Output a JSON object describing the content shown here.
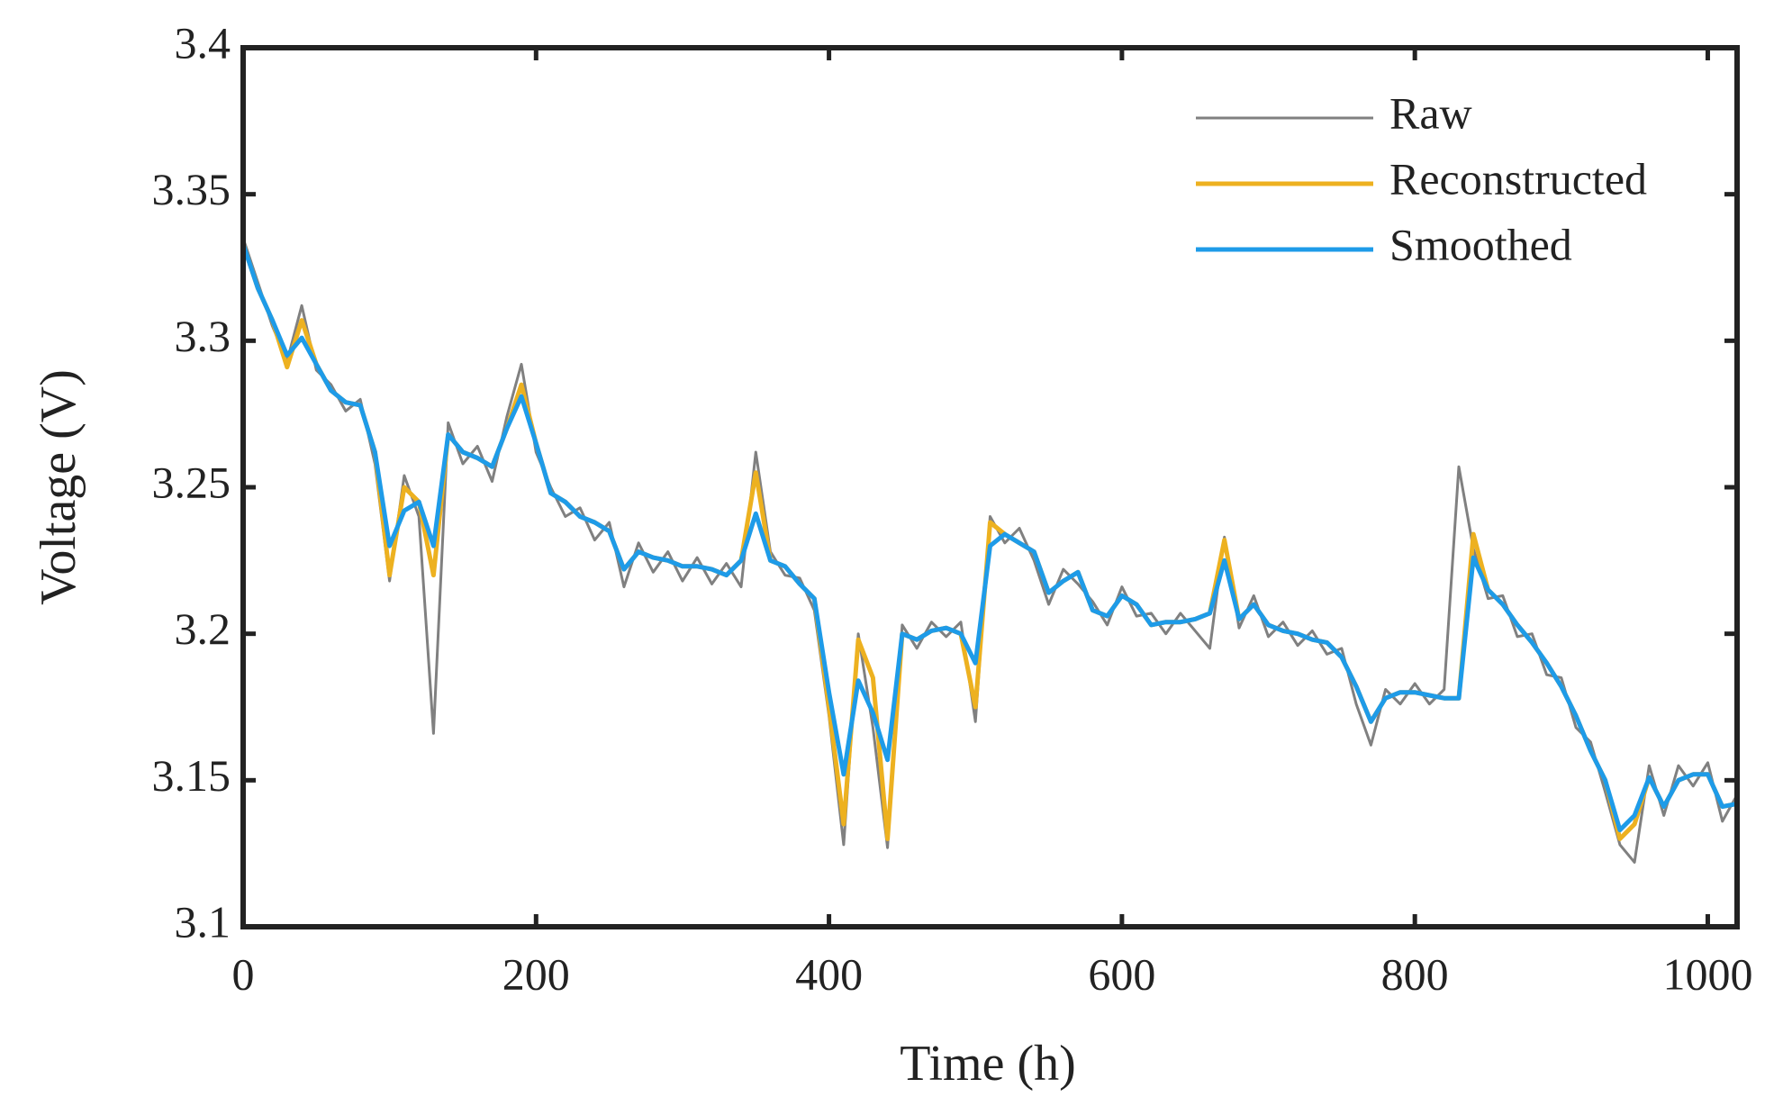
{
  "chart_data": {
    "type": "line",
    "xlabel": "Time (h)",
    "ylabel": "Voltage (V)",
    "x": [
      0,
      10,
      20,
      30,
      40,
      50,
      60,
      70,
      80,
      90,
      100,
      110,
      120,
      130,
      140,
      150,
      160,
      170,
      180,
      190,
      200,
      210,
      220,
      230,
      240,
      250,
      260,
      270,
      280,
      290,
      300,
      310,
      320,
      330,
      340,
      350,
      360,
      370,
      380,
      390,
      400,
      410,
      420,
      430,
      440,
      450,
      460,
      470,
      480,
      490,
      500,
      510,
      520,
      530,
      540,
      550,
      560,
      570,
      580,
      590,
      600,
      610,
      620,
      630,
      640,
      650,
      660,
      670,
      680,
      690,
      700,
      710,
      720,
      730,
      740,
      750,
      760,
      770,
      780,
      790,
      800,
      810,
      820,
      830,
      840,
      850,
      860,
      870,
      880,
      890,
      900,
      910,
      920,
      930,
      940,
      950,
      960,
      970,
      980,
      990,
      1000,
      1010,
      1020
    ],
    "series": [
      {
        "name": "Raw",
        "color": "#808080",
        "width": 3,
        "values": [
          3.335,
          3.32,
          3.305,
          3.293,
          3.312,
          3.29,
          3.285,
          3.276,
          3.28,
          3.258,
          3.218,
          3.254,
          3.24,
          3.166,
          3.272,
          3.258,
          3.264,
          3.252,
          3.274,
          3.292,
          3.262,
          3.25,
          3.24,
          3.243,
          3.232,
          3.238,
          3.216,
          3.231,
          3.221,
          3.228,
          3.218,
          3.226,
          3.217,
          3.224,
          3.216,
          3.262,
          3.228,
          3.22,
          3.219,
          3.208,
          3.172,
          3.128,
          3.2,
          3.168,
          3.127,
          3.203,
          3.195,
          3.204,
          3.199,
          3.204,
          3.17,
          3.24,
          3.231,
          3.236,
          3.225,
          3.21,
          3.222,
          3.217,
          3.211,
          3.203,
          3.216,
          3.206,
          3.207,
          3.2,
          3.207,
          3.201,
          3.195,
          3.233,
          3.202,
          3.213,
          3.199,
          3.204,
          3.196,
          3.201,
          3.193,
          3.195,
          3.176,
          3.162,
          3.181,
          3.176,
          3.183,
          3.176,
          3.181,
          3.257,
          3.229,
          3.212,
          3.213,
          3.199,
          3.2,
          3.186,
          3.185,
          3.168,
          3.163,
          3.146,
          3.128,
          3.122,
          3.155,
          3.138,
          3.155,
          3.148,
          3.156,
          3.136,
          3.145
        ]
      },
      {
        "name": "Reconstructed",
        "color": "#EDB120",
        "width": 5,
        "values": [
          3.333,
          3.318,
          3.307,
          3.291,
          3.307,
          3.292,
          3.283,
          3.279,
          3.278,
          3.262,
          3.22,
          3.25,
          3.245,
          3.22,
          3.268,
          3.262,
          3.26,
          3.257,
          3.27,
          3.285,
          3.265,
          3.248,
          3.245,
          3.24,
          3.238,
          3.235,
          3.222,
          3.228,
          3.226,
          3.225,
          3.223,
          3.223,
          3.222,
          3.22,
          3.225,
          3.255,
          3.225,
          3.223,
          3.217,
          3.212,
          3.175,
          3.135,
          3.198,
          3.185,
          3.13,
          3.2,
          3.198,
          3.201,
          3.202,
          3.2,
          3.175,
          3.238,
          3.234,
          3.231,
          3.228,
          3.214,
          3.218,
          3.221,
          3.208,
          3.206,
          3.213,
          3.21,
          3.203,
          3.204,
          3.204,
          3.205,
          3.207,
          3.232,
          3.205,
          3.21,
          3.203,
          3.201,
          3.2,
          3.198,
          3.197,
          3.192,
          3.182,
          3.17,
          3.178,
          3.18,
          3.18,
          3.179,
          3.178,
          3.178,
          3.234,
          3.215,
          3.21,
          3.203,
          3.197,
          3.19,
          3.182,
          3.172,
          3.16,
          3.15,
          3.13,
          3.135,
          3.151,
          3.141,
          3.15,
          3.152,
          3.152,
          3.141,
          3.142
        ]
      },
      {
        "name": "Smoothed",
        "color": "#1E9BE8",
        "width": 5,
        "values": [
          3.333,
          3.318,
          3.307,
          3.295,
          3.301,
          3.292,
          3.283,
          3.279,
          3.278,
          3.262,
          3.23,
          3.242,
          3.245,
          3.23,
          3.268,
          3.262,
          3.26,
          3.257,
          3.27,
          3.281,
          3.265,
          3.248,
          3.245,
          3.24,
          3.238,
          3.235,
          3.222,
          3.228,
          3.226,
          3.225,
          3.223,
          3.223,
          3.222,
          3.22,
          3.225,
          3.241,
          3.225,
          3.223,
          3.217,
          3.212,
          3.18,
          3.152,
          3.184,
          3.173,
          3.157,
          3.2,
          3.198,
          3.201,
          3.202,
          3.2,
          3.19,
          3.23,
          3.234,
          3.231,
          3.228,
          3.214,
          3.218,
          3.221,
          3.208,
          3.206,
          3.213,
          3.21,
          3.203,
          3.204,
          3.204,
          3.205,
          3.207,
          3.225,
          3.205,
          3.21,
          3.203,
          3.201,
          3.2,
          3.198,
          3.197,
          3.192,
          3.182,
          3.17,
          3.178,
          3.18,
          3.18,
          3.179,
          3.178,
          3.178,
          3.226,
          3.215,
          3.21,
          3.203,
          3.197,
          3.19,
          3.182,
          3.172,
          3.16,
          3.15,
          3.133,
          3.138,
          3.151,
          3.141,
          3.15,
          3.152,
          3.152,
          3.141,
          3.142
        ]
      }
    ],
    "xlim": [
      0,
      1020
    ],
    "xticks": [
      0,
      200,
      400,
      600,
      800,
      1000
    ],
    "ylim": [
      3.1,
      3.4
    ],
    "yticks": [
      3.1,
      3.15,
      3.2,
      3.25,
      3.3,
      3.35,
      3.4
    ],
    "legend": "upper right"
  }
}
